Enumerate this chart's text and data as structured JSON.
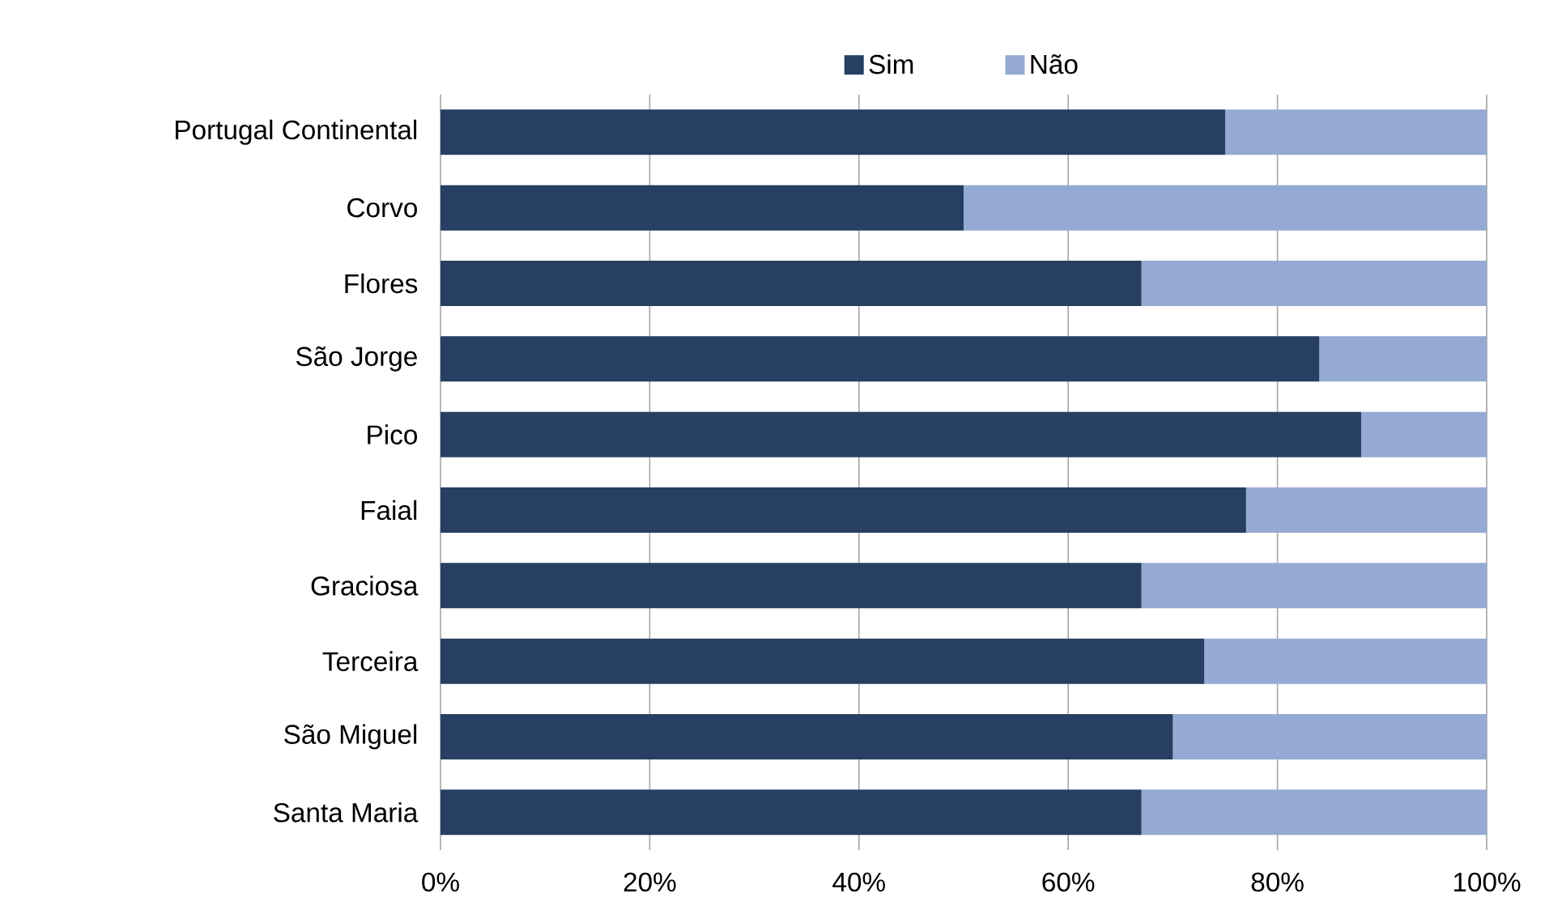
{
  "chart_data": {
    "type": "bar",
    "orientation": "horizontal",
    "stacked": true,
    "categories": [
      "Portugal Continental",
      "Corvo",
      "Flores",
      "São Jorge",
      "Pico",
      "Faial",
      "Graciosa",
      "Terceira",
      "São Miguel",
      "Santa Maria"
    ],
    "series": [
      {
        "name": "Sim",
        "color": "#263f62",
        "values": [
          75,
          50,
          67,
          84,
          88,
          77,
          67,
          73,
          70,
          67
        ]
      },
      {
        "name": "Não",
        "color": "#95aad3",
        "values": [
          25,
          50,
          33,
          16,
          12,
          23,
          33,
          27,
          30,
          33
        ]
      }
    ],
    "xlim": [
      0,
      100
    ],
    "xticks": [
      {
        "value": 0,
        "label": "0%"
      },
      {
        "value": 20,
        "label": "20%"
      },
      {
        "value": 40,
        "label": "40%"
      },
      {
        "value": 60,
        "label": "60%"
      },
      {
        "value": 80,
        "label": "80%"
      },
      {
        "value": 100,
        "label": "100%"
      }
    ],
    "grid": "x",
    "legend": "top"
  }
}
